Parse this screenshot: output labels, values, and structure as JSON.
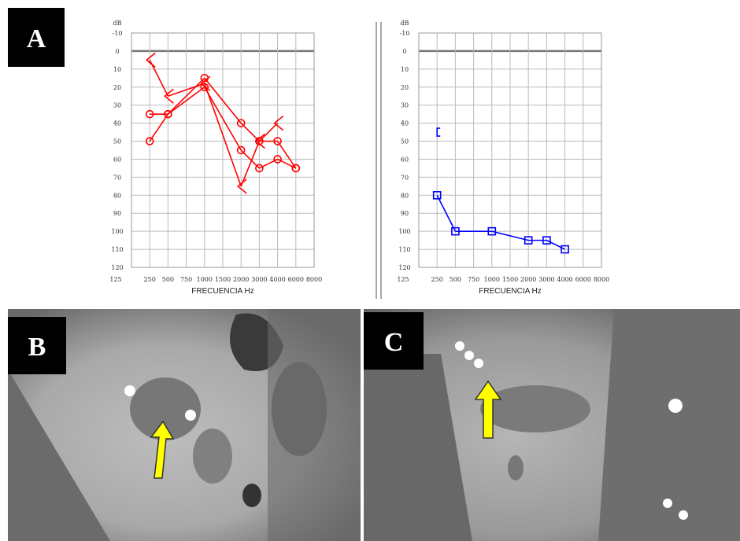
{
  "panels": [
    "A",
    "B",
    "C"
  ],
  "chart_data": [
    {
      "type": "line",
      "ylabel": "dB",
      "xlabel": "FRECUENCIA Hz",
      "categories": [
        "125",
        "250",
        "500",
        "750",
        "1000",
        "1500",
        "2000",
        "3000",
        "4000",
        "6000",
        "8000"
      ],
      "ylim": [
        -10,
        120
      ],
      "yticks": [
        -10,
        0,
        10,
        20,
        30,
        40,
        50,
        60,
        70,
        80,
        90,
        100,
        110,
        120
      ],
      "inverted": true,
      "grid": true,
      "series": [
        {
          "color": "#ff0000",
          "marker": "circle",
          "values": [
            null,
            35,
            35,
            null,
            20,
            null,
            55,
            65,
            60,
            65,
            null
          ]
        },
        {
          "color": "#ff0000",
          "marker": "circle",
          "values": [
            null,
            50,
            35,
            null,
            15,
            null,
            40,
            50,
            50,
            65,
            null
          ]
        },
        {
          "color": "#ff0000",
          "marker": "chevron",
          "values": [
            null,
            5,
            25,
            null,
            18,
            null,
            75,
            50,
            40,
            null,
            null
          ]
        }
      ]
    },
    {
      "type": "line",
      "ylabel": "dB",
      "xlabel": "FRECUENCIA Hz",
      "categories": [
        "125",
        "250",
        "500",
        "750",
        "1000",
        "1500",
        "2000",
        "3000",
        "4000",
        "6000",
        "8000"
      ],
      "ylim": [
        -10,
        120
      ],
      "yticks": [
        -10,
        0,
        10,
        20,
        30,
        40,
        50,
        60,
        70,
        80,
        90,
        100,
        110,
        120
      ],
      "inverted": true,
      "grid": true,
      "series": [
        {
          "color": "#0000ff",
          "marker": "square",
          "values": [
            null,
            80,
            100,
            null,
            100,
            null,
            105,
            105,
            110,
            null,
            null
          ]
        },
        {
          "color": "#0000ff",
          "marker": "bracket",
          "values": [
            null,
            45,
            null,
            null,
            null,
            null,
            null,
            null,
            null,
            null,
            null
          ]
        }
      ]
    }
  ]
}
